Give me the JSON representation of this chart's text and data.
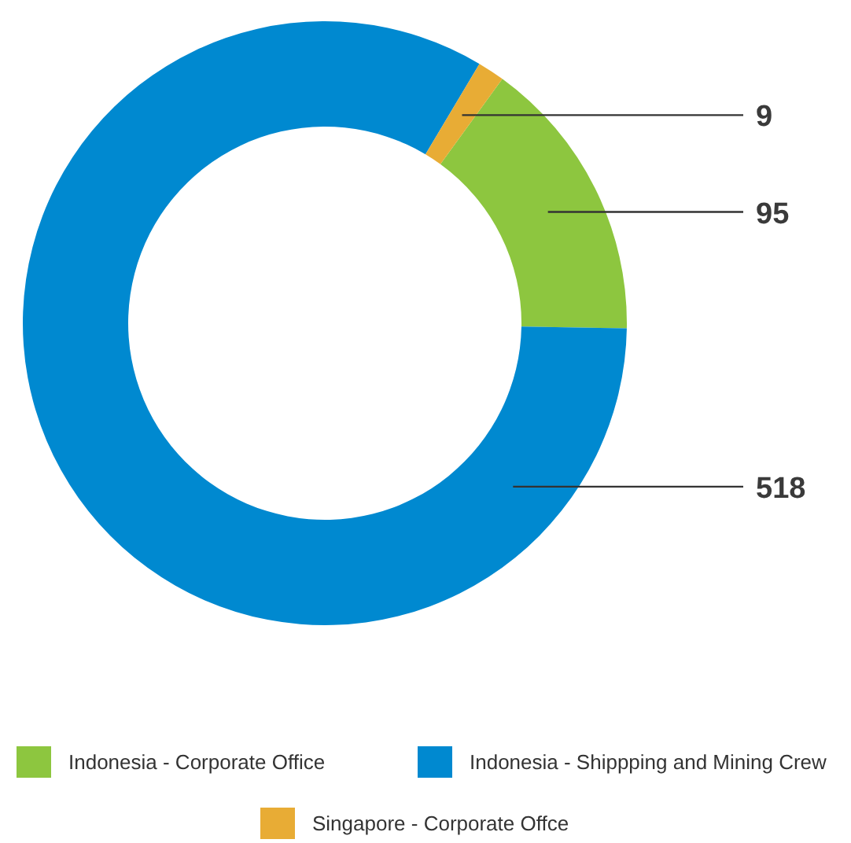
{
  "chart_data": {
    "type": "donut",
    "categories": [
      "Indonesia - Corporate Office",
      "Indonesia - Shippping and Mining Crew",
      "Singapore - Corporate Offce"
    ],
    "values": [
      95,
      518,
      9
    ],
    "colors": [
      "#8dc63f",
      "#0089d0",
      "#e8ac35"
    ],
    "data_labels": true,
    "legend": "bottom"
  }
}
